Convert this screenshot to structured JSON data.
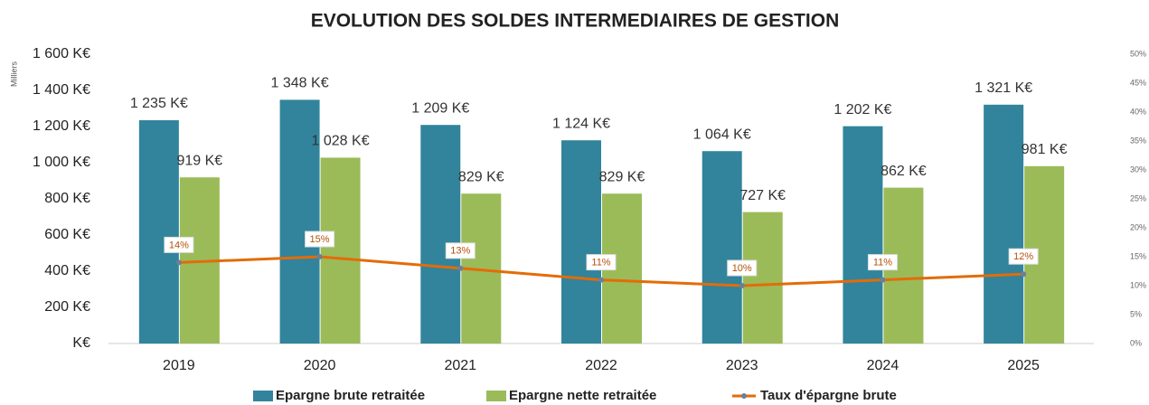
{
  "chart_data": {
    "type": "bar_line",
    "title": "EVOLUTION DES SOLDES INTERMEDIAIRES DE GESTION",
    "y_axis_label": "Milliers",
    "categories": [
      "2019",
      "2020",
      "2021",
      "2022",
      "2023",
      "2024",
      "2025"
    ],
    "series": [
      {
        "name": "Epargne brute retraitée",
        "color": "#31849b",
        "type": "bar",
        "values": [
          1235,
          1348,
          1209,
          1124,
          1064,
          1202,
          1321
        ],
        "value_labels": [
          "1 235 K€",
          "1 348 K€",
          "1 209 K€",
          "1 124 K€",
          "1 064 K€",
          "1 202 K€",
          "1 321 K€"
        ]
      },
      {
        "name": "Epargne nette retraitée",
        "color": "#9bbb59",
        "type": "bar",
        "values": [
          919,
          1028,
          829,
          829,
          727,
          862,
          981
        ],
        "value_labels": [
          "919 K€",
          "1 028 K€",
          "829 K€",
          "829 K€",
          "727 K€",
          "862 K€",
          "981 K€"
        ]
      },
      {
        "name": "Taux d'épargne brute",
        "color": "#e36c09",
        "type": "line",
        "axis": "y2",
        "values": [
          14,
          15,
          13,
          11,
          10,
          11,
          12
        ],
        "value_labels": [
          "14%",
          "15%",
          "13%",
          "11%",
          "10%",
          "11%",
          "12%"
        ]
      }
    ],
    "ylim": [
      0,
      1600
    ],
    "yticks": [
      {
        "value": 0,
        "label": "K€"
      },
      {
        "value": 200,
        "label": "200 K€"
      },
      {
        "value": 400,
        "label": "400 K€"
      },
      {
        "value": 600,
        "label": "600 K€"
      },
      {
        "value": 800,
        "label": "800 K€"
      },
      {
        "value": 1000,
        "label": "1 000 K€"
      },
      {
        "value": 1200,
        "label": "1 200 K€"
      },
      {
        "value": 1400,
        "label": "1 400 K€"
      },
      {
        "value": 1600,
        "label": "1 600 K€"
      }
    ],
    "y2lim": [
      0,
      50
    ],
    "y2ticks": [
      {
        "value": 0,
        "label": "0%"
      },
      {
        "value": 5,
        "label": "5%"
      },
      {
        "value": 10,
        "label": "10%"
      },
      {
        "value": 15,
        "label": "15%"
      },
      {
        "value": 20,
        "label": "20%"
      },
      {
        "value": 25,
        "label": "25%"
      },
      {
        "value": 30,
        "label": "30%"
      },
      {
        "value": 35,
        "label": "35%"
      },
      {
        "value": 40,
        "label": "40%"
      },
      {
        "value": 45,
        "label": "45%"
      },
      {
        "value": 50,
        "label": "50%"
      }
    ]
  }
}
